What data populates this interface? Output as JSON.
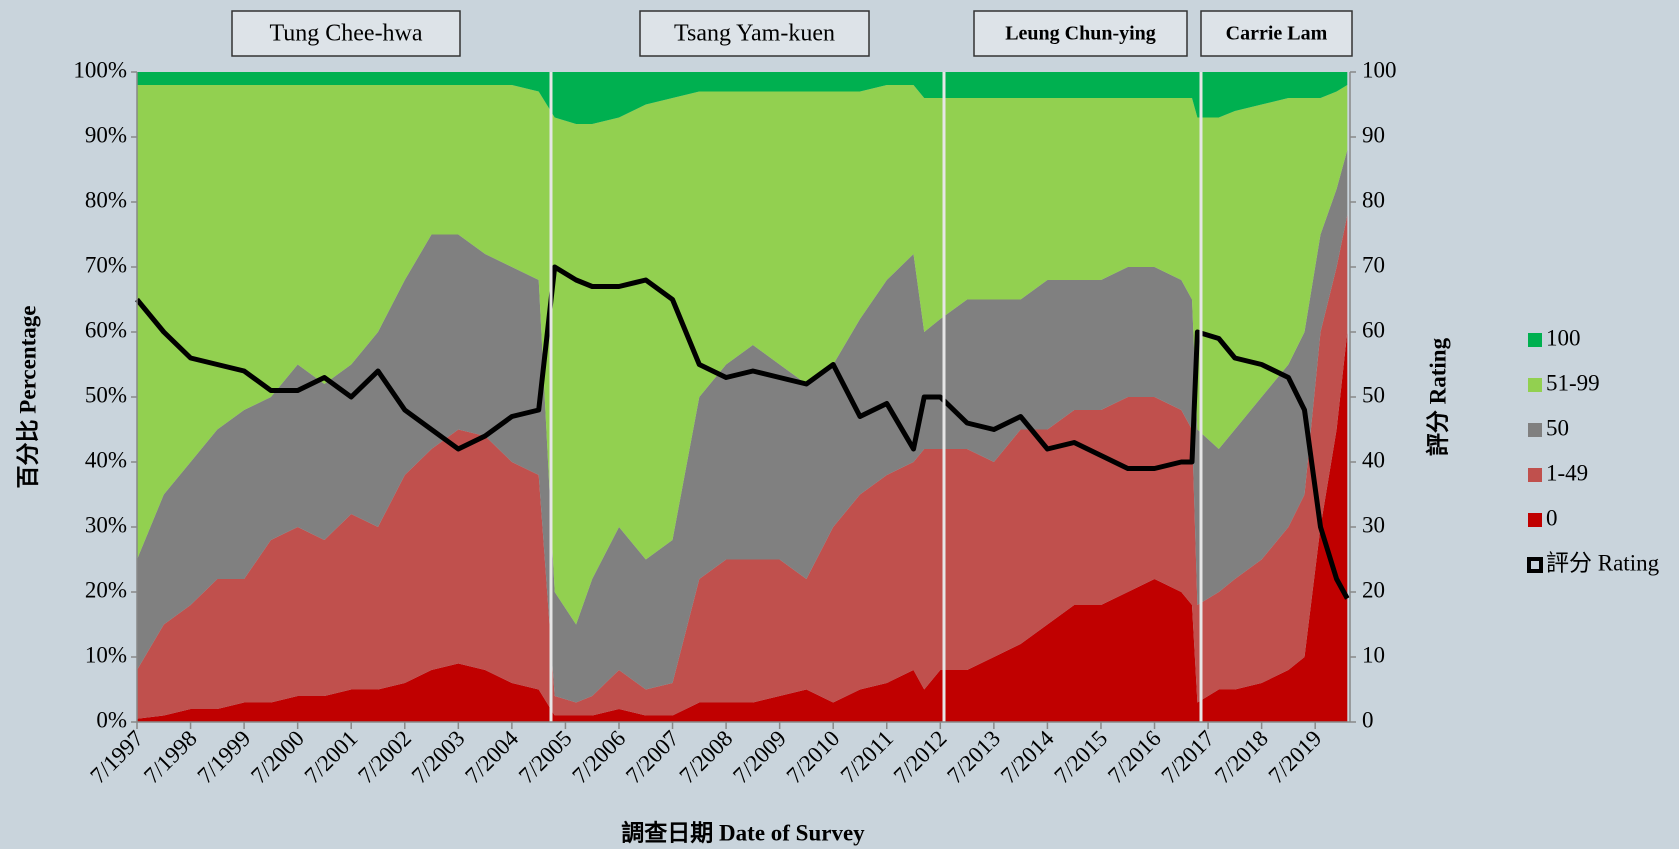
{
  "chart_data": {
    "type": "area",
    "y_label": "百分比 Percentage",
    "y2_label": "評分 Rating",
    "x_label": "調查日期 Date of Survey",
    "annotations": [
      "Tung Chee-hwa",
      "Tsang Yam-kuen",
      "Leung Chun-ying",
      "Carrie Lam"
    ],
    "x": [
      1997.5,
      1998.0,
      1998.5,
      1999.0,
      1999.5,
      2000.0,
      2000.5,
      2001.0,
      2001.5,
      2002.0,
      2002.5,
      2003.0,
      2003.5,
      2004.0,
      2004.5,
      2005.0,
      2005.3,
      2005.7,
      2006.0,
      2006.5,
      2007.0,
      2007.5,
      2008.0,
      2008.5,
      2009.0,
      2009.5,
      2010.0,
      2010.5,
      2011.0,
      2011.5,
      2012.0,
      2012.2,
      2012.5,
      2013.0,
      2013.5,
      2014.0,
      2014.5,
      2015.0,
      2015.5,
      2016.0,
      2016.5,
      2017.0,
      2017.2,
      2017.3,
      2017.7,
      2018.0,
      2018.5,
      2019.0,
      2019.3,
      2019.6,
      2019.9,
      2020.1
    ],
    "series": [
      {
        "name": "0",
        "color": "#c00000",
        "values": [
          0.5,
          1,
          2,
          2,
          3,
          3,
          4,
          4,
          5,
          5,
          6,
          8,
          9,
          8,
          6,
          5,
          1,
          1,
          1,
          2,
          1,
          1,
          3,
          3,
          3,
          4,
          5,
          3,
          5,
          6,
          8,
          5,
          8,
          8,
          10,
          12,
          15,
          18,
          18,
          20,
          22,
          20,
          18,
          3,
          5,
          5,
          6,
          8,
          10,
          30,
          45,
          60
        ]
      },
      {
        "name": "1-49",
        "color": "#c0504d",
        "values": [
          7.5,
          14,
          16,
          20,
          19,
          25,
          26,
          24,
          27,
          25,
          32,
          34,
          36,
          36,
          34,
          33,
          3,
          2,
          3,
          6,
          4,
          5,
          19,
          22,
          22,
          21,
          17,
          27,
          30,
          32,
          32,
          37,
          34,
          34,
          30,
          33,
          30,
          30,
          30,
          30,
          28,
          28,
          27,
          15,
          15,
          17,
          19,
          22,
          25,
          30,
          25,
          18
        ]
      },
      {
        "name": "50",
        "color": "#808080",
        "values": [
          17,
          20,
          22,
          23,
          26,
          22,
          25,
          24,
          23,
          30,
          30,
          33,
          30,
          28,
          30,
          30,
          16,
          12,
          18,
          22,
          20,
          22,
          28,
          30,
          33,
          30,
          30,
          25,
          27,
          30,
          32,
          18,
          20,
          23,
          25,
          20,
          23,
          20,
          20,
          20,
          20,
          20,
          20,
          27,
          22,
          23,
          25,
          25,
          25,
          15,
          12,
          10
        ]
      },
      {
        "name": "51-99",
        "color": "#92d050",
        "values": [
          73,
          63,
          58,
          53,
          50,
          48,
          43,
          46,
          43,
          38,
          30,
          23,
          23,
          26,
          28,
          29,
          73,
          77,
          70,
          63,
          70,
          68,
          47,
          42,
          39,
          42,
          45,
          42,
          35,
          30,
          26,
          36,
          34,
          31,
          31,
          31,
          28,
          28,
          28,
          26,
          26,
          28,
          31,
          48,
          51,
          49,
          45,
          41,
          36,
          21,
          15,
          10
        ]
      },
      {
        "name": "100",
        "color": "#00b050",
        "values": [
          2,
          2,
          2,
          2,
          2,
          2,
          2,
          2,
          2,
          2,
          2,
          2,
          2,
          2,
          2,
          3,
          7,
          8,
          8,
          7,
          5,
          4,
          3,
          3,
          3,
          3,
          3,
          3,
          3,
          2,
          2,
          4,
          4,
          4,
          4,
          4,
          4,
          4,
          4,
          4,
          4,
          4,
          4,
          7,
          7,
          6,
          5,
          4,
          4,
          4,
          3,
          2
        ]
      },
      {
        "name": "評分 Rating",
        "type": "line",
        "axis": "y2",
        "color": "#000000",
        "values": [
          65,
          60,
          56,
          55,
          54,
          51,
          51,
          53,
          50,
          54,
          48,
          45,
          42,
          44,
          47,
          48,
          70,
          68,
          67,
          67,
          68,
          65,
          55,
          53,
          54,
          53,
          52,
          55,
          47,
          49,
          42,
          50,
          50,
          46,
          45,
          47,
          42,
          43,
          41,
          39,
          39,
          40,
          40,
          60,
          59,
          56,
          55,
          53,
          48,
          30,
          22,
          19
        ]
      }
    ],
    "xlim": [
      1997.5,
      2020.15
    ],
    "xticks": [
      {
        "value": 1997.5,
        "label": "7/1997"
      },
      {
        "value": 1998.5,
        "label": "7/1998"
      },
      {
        "value": 1999.5,
        "label": "7/1999"
      },
      {
        "value": 2000.5,
        "label": "7/2000"
      },
      {
        "value": 2001.5,
        "label": "7/2001"
      },
      {
        "value": 2002.5,
        "label": "7/2002"
      },
      {
        "value": 2003.5,
        "label": "7/2003"
      },
      {
        "value": 2004.5,
        "label": "7/2004"
      },
      {
        "value": 2005.5,
        "label": "7/2005"
      },
      {
        "value": 2006.5,
        "label": "7/2006"
      },
      {
        "value": 2007.5,
        "label": "7/2007"
      },
      {
        "value": 2008.5,
        "label": "7/2008"
      },
      {
        "value": 2009.5,
        "label": "7/2009"
      },
      {
        "value": 2010.5,
        "label": "7/2010"
      },
      {
        "value": 2011.5,
        "label": "7/2011"
      },
      {
        "value": 2012.5,
        "label": "7/2012"
      },
      {
        "value": 2013.5,
        "label": "7/2013"
      },
      {
        "value": 2014.5,
        "label": "7/2014"
      },
      {
        "value": 2015.5,
        "label": "7/2015"
      },
      {
        "value": 2016.5,
        "label": "7/2016"
      },
      {
        "value": 2017.5,
        "label": "7/2017"
      },
      {
        "value": 2018.5,
        "label": "7/2018"
      },
      {
        "value": 2019.5,
        "label": "7/2019"
      }
    ],
    "ylim": [
      0,
      100
    ],
    "yticks": [
      {
        "value": 0,
        "label": "0%"
      },
      {
        "value": 10,
        "label": "10%"
      },
      {
        "value": 20,
        "label": "20%"
      },
      {
        "value": 30,
        "label": "30%"
      },
      {
        "value": 40,
        "label": "40%"
      },
      {
        "value": 50,
        "label": "50%"
      },
      {
        "value": 60,
        "label": "60%"
      },
      {
        "value": 70,
        "label": "70%"
      },
      {
        "value": 80,
        "label": "80%"
      },
      {
        "value": 90,
        "label": "90%"
      },
      {
        "value": 100,
        "label": "100%"
      }
    ],
    "y2lim": [
      0,
      100
    ],
    "y2ticks": [
      0,
      10,
      20,
      30,
      40,
      50,
      60,
      70,
      80,
      90,
      100
    ],
    "legend": "right"
  }
}
